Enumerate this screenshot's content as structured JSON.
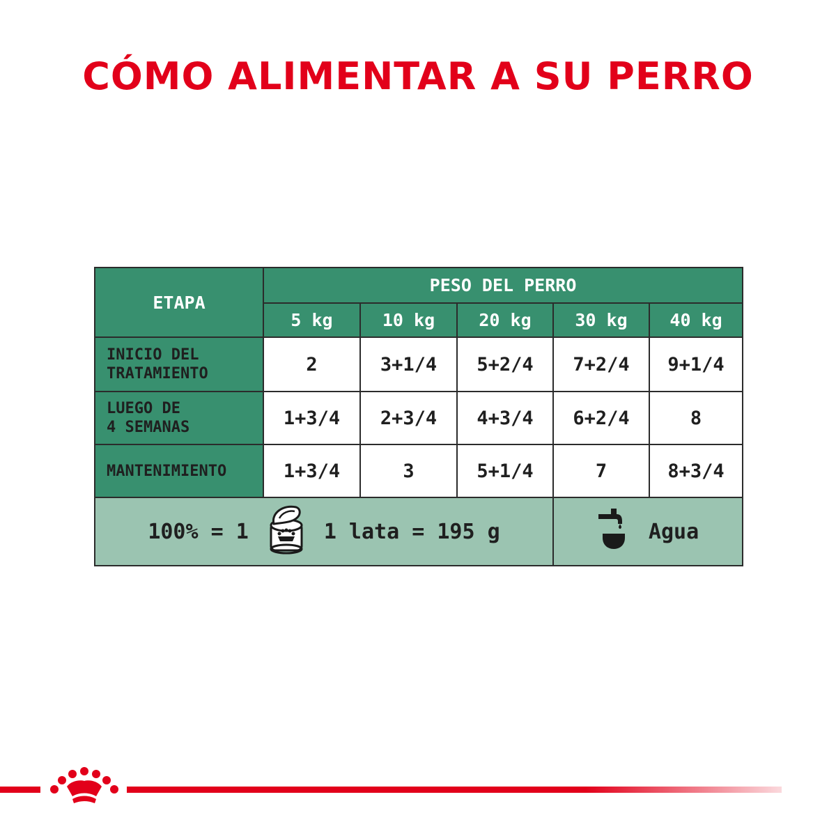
{
  "title": "CÓMO ALIMENTAR A SU PERRO",
  "table": {
    "stage_header": "ETAPA",
    "weight_header": "PESO DEL PERRO",
    "weights": [
      "5 kg",
      "10 kg",
      "20 kg",
      "30 kg",
      "40 kg"
    ],
    "rows": [
      {
        "label_line1": "INICIO DEL",
        "label_line2": "TRATAMIENTO",
        "values": [
          "2",
          "3+1/4",
          "5+2/4",
          "7+2/4",
          "9+1/4"
        ]
      },
      {
        "label_line1": "LUEGO DE",
        "label_line2": "4 SEMANAS",
        "values": [
          "1+3/4",
          "2+3/4",
          "4+3/4",
          "6+2/4",
          "8"
        ]
      },
      {
        "label_line1": "MANTENIMIENTO",
        "label_line2": "",
        "values": [
          "1+3/4",
          "3",
          "5+1/4",
          "7",
          "8+3/4"
        ]
      }
    ],
    "footer": {
      "ratio": "100% = 1",
      "can_icon": "dog-food-can-icon",
      "can_text": "1 lata = 195 g",
      "water_icon": "water-tap-bowl-icon",
      "water_text": "Agua"
    }
  },
  "brand": {
    "logo_icon": "royal-crown-logo-icon",
    "accent_color": "#e2001a",
    "table_green": "#38906f",
    "footer_green": "#9bc4b1"
  }
}
